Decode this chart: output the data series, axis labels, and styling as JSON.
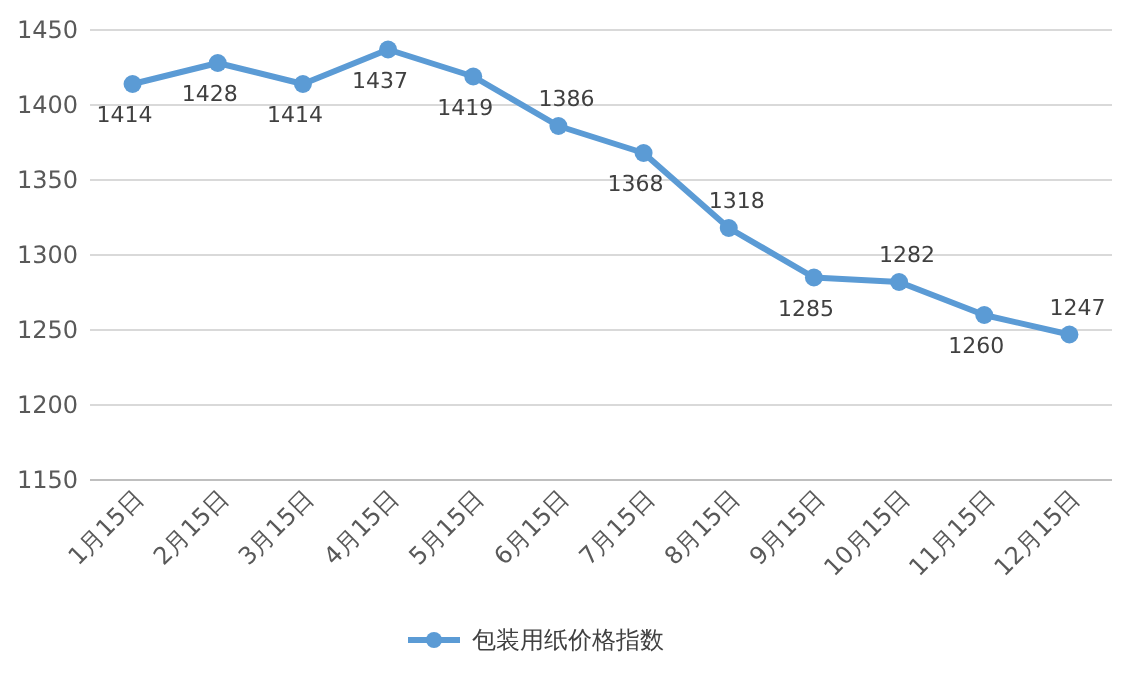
{
  "chart_data": {
    "type": "line",
    "categories": [
      "1月15日",
      "2月15日",
      "3月15日",
      "4月15日",
      "5月15日",
      "6月15日",
      "7月15日",
      "8月15日",
      "9月15日",
      "10月15日",
      "11月15日",
      "12月15日"
    ],
    "series": [
      {
        "name": "包装用纸价格指数",
        "color": "#5b9bd5",
        "values": [
          1414,
          1428,
          1414,
          1437,
          1419,
          1386,
          1368,
          1318,
          1285,
          1282,
          1260,
          1247
        ]
      }
    ],
    "ylim": [
      1150,
      1450
    ],
    "yticks": [
      1150,
      1200,
      1250,
      1300,
      1350,
      1400,
      1450
    ],
    "grid": "y",
    "legend": "bottom",
    "marker": "circle",
    "line_style": "solid",
    "data_labels": true
  }
}
